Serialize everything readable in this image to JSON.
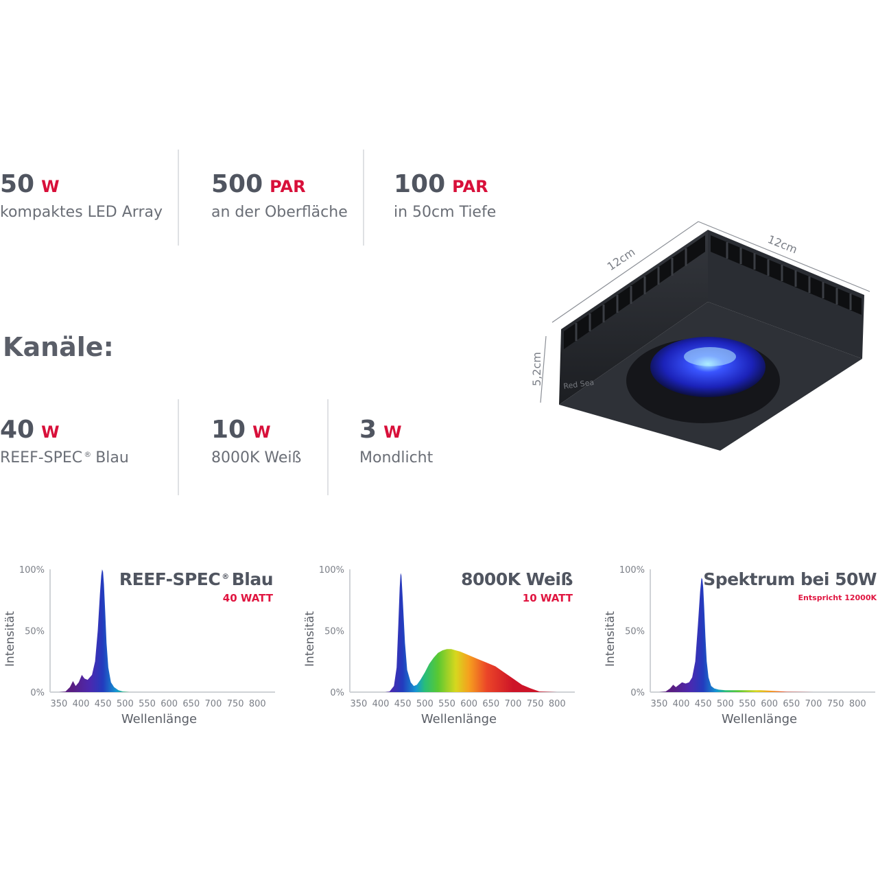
{
  "specs": [
    {
      "value": "50",
      "unit": "W",
      "label": "kompaktes LED Array"
    },
    {
      "value": "500",
      "unit": "PAR",
      "label": "an der Oberfläche"
    },
    {
      "value": "100",
      "unit": "PAR",
      "label": "in 50cm Tiefe"
    }
  ],
  "channels_heading": "Kanäle:",
  "channels": [
    {
      "value": "40",
      "unit": "W",
      "label": "REEF-SPEC",
      "reg": "®",
      "label_suffix": "Blau"
    },
    {
      "value": "10",
      "unit": "W",
      "label": "8000K Weiß"
    },
    {
      "value": "3",
      "unit": "W",
      "label": "Mondlicht"
    }
  ],
  "product": {
    "dim_top_left": "12cm",
    "dim_top_right": "12cm",
    "dim_height": "5,2cm",
    "brand": "Red Sea",
    "colors": {
      "body": "#2d3036",
      "top": "#3b3e44",
      "glow": "#2a3cff"
    }
  },
  "chart_data": [
    {
      "type": "area",
      "title": "REEF-SPEC",
      "title_reg": "®",
      "title_suffix": "Blau",
      "subtitle": "40 WATT",
      "xlabel": "Wellenlänge",
      "ylabel": "Intensität",
      "xlim": [
        330,
        840
      ],
      "ylim": [
        0,
        100
      ],
      "x_ticks": [
        350,
        400,
        450,
        500,
        550,
        600,
        650,
        700,
        750,
        800
      ],
      "y_ticks": [
        {
          "value": 0,
          "label": "0%"
        },
        {
          "value": 50,
          "label": "50%"
        },
        {
          "value": 100,
          "label": "100%"
        }
      ],
      "x": [
        350,
        365,
        375,
        382,
        388,
        395,
        402,
        408,
        415,
        425,
        432,
        438,
        443,
        446,
        448,
        450,
        452,
        455,
        458,
        462,
        468,
        475,
        485,
        495,
        510,
        550,
        600,
        700,
        800
      ],
      "values": [
        0,
        0.5,
        4,
        9,
        5,
        8,
        14,
        11,
        10,
        14,
        25,
        50,
        80,
        95,
        100,
        98,
        88,
        65,
        40,
        20,
        8,
        4,
        1.5,
        0.5,
        0,
        0,
        0,
        0,
        0
      ]
    },
    {
      "type": "area",
      "title": "8000K Weiß",
      "subtitle": "10 WATT",
      "xlabel": "Wellenlänge",
      "ylabel": "Intensität",
      "xlim": [
        330,
        840
      ],
      "ylim": [
        0,
        100
      ],
      "x_ticks": [
        350,
        400,
        450,
        500,
        550,
        600,
        650,
        700,
        750,
        800
      ],
      "y_ticks": [
        {
          "value": 0,
          "label": "0%"
        },
        {
          "value": 50,
          "label": "50%"
        },
        {
          "value": 100,
          "label": "100%"
        }
      ],
      "x": [
        350,
        410,
        420,
        430,
        436,
        440,
        443,
        445,
        447,
        450,
        455,
        460,
        468,
        475,
        482,
        490,
        500,
        510,
        520,
        530,
        540,
        550,
        560,
        570,
        580,
        600,
        620,
        640,
        660,
        680,
        700,
        720,
        740,
        760,
        800
      ],
      "values": [
        0,
        0,
        0.5,
        5,
        20,
        55,
        85,
        97,
        95,
        75,
        40,
        18,
        8,
        5,
        6,
        10,
        16,
        23,
        28,
        32,
        34,
        35,
        35,
        34,
        33,
        30,
        27,
        24,
        21,
        16,
        11,
        6,
        3,
        0.5,
        0
      ]
    },
    {
      "type": "area",
      "title": "Spektrum bei 50W",
      "subtitle": "Entspricht 12000K",
      "xlabel": "Wellenlänge",
      "ylabel": "Intensität",
      "xlim": [
        330,
        840
      ],
      "ylim": [
        0,
        100
      ],
      "x_ticks": [
        350,
        400,
        450,
        500,
        550,
        600,
        650,
        700,
        750,
        800
      ],
      "y_ticks": [
        {
          "value": 0,
          "label": "0%"
        },
        {
          "value": 50,
          "label": "50%"
        },
        {
          "value": 100,
          "label": "100%"
        }
      ],
      "x": [
        350,
        365,
        375,
        382,
        388,
        395,
        402,
        410,
        418,
        425,
        432,
        438,
        443,
        446,
        448,
        450,
        452,
        455,
        458,
        462,
        468,
        475,
        485,
        500,
        520,
        550,
        580,
        600,
        620,
        640,
        700,
        800
      ],
      "values": [
        0,
        0.5,
        3,
        6,
        4,
        6,
        8,
        7,
        8,
        12,
        25,
        55,
        82,
        93,
        92,
        85,
        70,
        45,
        25,
        12,
        5,
        3,
        2,
        1.5,
        1.5,
        1.5,
        1.5,
        1.2,
        0.8,
        0.3,
        0,
        0
      ]
    }
  ]
}
